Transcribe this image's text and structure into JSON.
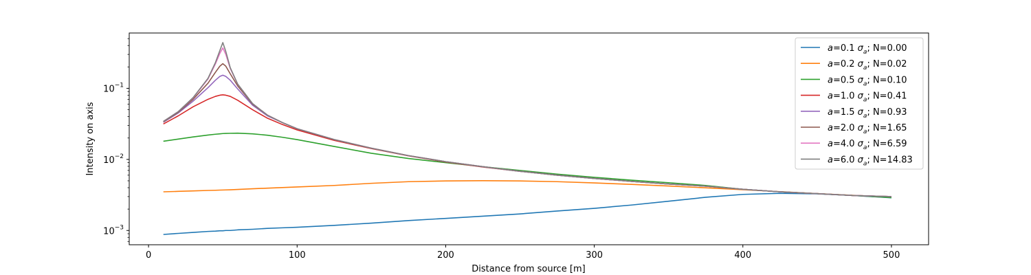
{
  "chart_data": {
    "type": "line",
    "xlabel": "Distance from source [m]",
    "ylabel": "Intensity on axis",
    "xlim": [
      -13,
      525
    ],
    "ylim": [
      0.00063,
      0.6
    ],
    "yscale": "log",
    "xticks": [
      0,
      100,
      200,
      300,
      400,
      500
    ],
    "yticks": [
      0.001,
      0.01,
      0.1
    ],
    "yticks_labels": [
      "10",
      "10",
      "10"
    ],
    "yticks_exponents": [
      "−3",
      "−2",
      "−1"
    ],
    "grid": false,
    "legend_position": "top-right",
    "x": [
      10,
      20,
      30,
      40,
      45,
      48,
      50,
      52,
      55,
      60,
      70,
      80,
      90,
      100,
      125,
      150,
      175,
      200,
      225,
      250,
      275,
      300,
      325,
      350,
      375,
      400,
      425,
      450,
      475,
      500
    ],
    "series": [
      {
        "name": "a=0.1 σa; N=0.00",
        "label_parts": [
          "a",
          "=0.1 ",
          "σ",
          "a",
          "; N=0.00"
        ],
        "color": "#1f77b4",
        "values": [
          0.00088,
          0.00091,
          0.00094,
          0.00097,
          0.00098,
          0.00099,
          0.00099,
          0.001,
          0.001,
          0.00102,
          0.00104,
          0.00107,
          0.00109,
          0.00111,
          0.00118,
          0.00127,
          0.00138,
          0.00148,
          0.00159,
          0.00171,
          0.00188,
          0.00205,
          0.00228,
          0.00258,
          0.00293,
          0.00322,
          0.00333,
          0.00328,
          0.0031,
          0.00288
        ]
      },
      {
        "name": "a=0.2 σa; N=0.02",
        "label_parts": [
          "a",
          "=0.2 ",
          "σ",
          "a",
          "; N=0.02"
        ],
        "color": "#ff7f0e",
        "values": [
          0.0035,
          0.00355,
          0.0036,
          0.00366,
          0.00368,
          0.0037,
          0.00371,
          0.00372,
          0.00374,
          0.00378,
          0.00386,
          0.00394,
          0.00402,
          0.0041,
          0.0043,
          0.00461,
          0.00486,
          0.00498,
          0.00502,
          0.00498,
          0.00486,
          0.00467,
          0.00445,
          0.00422,
          0.00398,
          0.00375,
          0.00352,
          0.00331,
          0.00312,
          0.00295
        ]
      },
      {
        "name": "a=0.5 σa; N=0.10",
        "label_parts": [
          "a",
          "=0.5 ",
          "σ",
          "a",
          "; N=0.10"
        ],
        "color": "#2ca02c",
        "values": [
          0.018,
          0.0193,
          0.0207,
          0.022,
          0.0226,
          0.0229,
          0.0231,
          0.0232,
          0.0233,
          0.0234,
          0.0229,
          0.0219,
          0.0205,
          0.019,
          0.0152,
          0.0122,
          0.0103,
          0.009,
          0.0079,
          0.007,
          0.0062,
          0.0056,
          0.0051,
          0.0047,
          0.0043,
          0.0038,
          0.0035,
          0.0033,
          0.0031,
          0.0029
        ]
      },
      {
        "name": "a=1.0 σa; N=0.41",
        "label_parts": [
          "a",
          "=1.0 ",
          "σ",
          "a",
          "; N=0.41"
        ],
        "color": "#d62728",
        "values": [
          0.0315,
          0.041,
          0.055,
          0.07,
          0.077,
          0.08,
          0.081,
          0.08,
          0.077,
          0.068,
          0.05,
          0.038,
          0.031,
          0.026,
          0.0185,
          0.0142,
          0.0112,
          0.0092,
          0.0078,
          0.0068,
          0.006,
          0.0054,
          0.0049,
          0.0045,
          0.0042,
          0.0038,
          0.0035,
          0.0033,
          0.0031,
          0.003
        ]
      },
      {
        "name": "a=1.5 σa; N=0.93",
        "label_parts": [
          "a",
          "=1.5 ",
          "σ",
          "a",
          "; N=0.93"
        ],
        "color": "#9467bd",
        "values": [
          0.0333,
          0.045,
          0.066,
          0.102,
          0.13,
          0.147,
          0.153,
          0.147,
          0.13,
          0.098,
          0.058,
          0.041,
          0.033,
          0.027,
          0.019,
          0.0144,
          0.0113,
          0.0093,
          0.0079,
          0.0068,
          0.006,
          0.0054,
          0.0049,
          0.0045,
          0.0042,
          0.0038,
          0.0035,
          0.0033,
          0.0031,
          0.003
        ]
      },
      {
        "name": "a=2.0 σa; N=1.65",
        "label_parts": [
          "a",
          "=2.0 ",
          "σ",
          "a",
          "; N=1.65"
        ],
        "color": "#8c564b",
        "values": [
          0.0338,
          0.046,
          0.07,
          0.118,
          0.168,
          0.205,
          0.222,
          0.205,
          0.16,
          0.108,
          0.06,
          0.042,
          0.033,
          0.027,
          0.019,
          0.0144,
          0.0113,
          0.0093,
          0.0079,
          0.0068,
          0.006,
          0.0054,
          0.0049,
          0.0045,
          0.0042,
          0.0038,
          0.0035,
          0.0033,
          0.0031,
          0.003
        ]
      },
      {
        "name": "a=4.0 σa; N=6.59",
        "label_parts": [
          "a",
          "=4.0 ",
          "σ",
          "a",
          "; N=6.59"
        ],
        "color": "#e377c2",
        "values": [
          0.0342,
          0.047,
          0.073,
          0.135,
          0.22,
          0.31,
          0.37,
          0.3,
          0.19,
          0.114,
          0.061,
          0.042,
          0.033,
          0.027,
          0.019,
          0.0144,
          0.0113,
          0.0093,
          0.0079,
          0.0068,
          0.006,
          0.0054,
          0.0049,
          0.0045,
          0.0042,
          0.0038,
          0.0035,
          0.0033,
          0.0031,
          0.003
        ]
      },
      {
        "name": "a=6.0 σa; N=14.83",
        "label_parts": [
          "a",
          "=6.0 ",
          "σ",
          "a",
          "; N=14.83"
        ],
        "color": "#7f7f7f",
        "values": [
          0.0343,
          0.047,
          0.074,
          0.138,
          0.23,
          0.34,
          0.44,
          0.33,
          0.195,
          0.115,
          0.061,
          0.042,
          0.033,
          0.027,
          0.019,
          0.0144,
          0.0113,
          0.0093,
          0.0079,
          0.0068,
          0.006,
          0.0054,
          0.0049,
          0.0045,
          0.0042,
          0.0038,
          0.0035,
          0.0033,
          0.0031,
          0.003
        ]
      }
    ]
  }
}
